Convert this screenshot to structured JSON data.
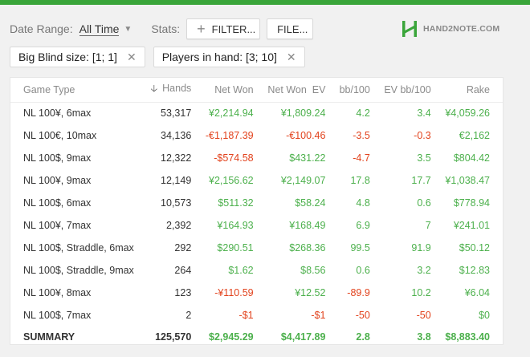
{
  "colors": {
    "accent": "#3aa53a",
    "positive": "#4cb04c",
    "negative": "#e2421c"
  },
  "toolbar": {
    "date_range_label": "Date Range:",
    "date_range_value": "All Time",
    "stats_label": "Stats:",
    "filter_label": "FILTER...",
    "file_label": "FILE..."
  },
  "logo": {
    "text": "HAND2NOTE.COM",
    "icon": "h2n-logo-icon"
  },
  "chips": [
    {
      "label": "Big Blind size: [1; 1]"
    },
    {
      "label": "Players in hand: [3; 10]"
    }
  ],
  "table": {
    "columns": [
      "Game Type",
      "Hands",
      "Net Won",
      "Net Won  EV",
      "bb/100",
      "EV bb/100",
      "Rake"
    ],
    "sort_column": "Hands",
    "rows": [
      {
        "game": "NL 100¥, 6max",
        "hands": "53,317",
        "net": "¥2,214.94",
        "net_s": "pos",
        "netev": "¥1,809.24",
        "netev_s": "pos",
        "bb": "4.2",
        "bb_s": "pos",
        "evbb": "3.4",
        "evbb_s": "pos",
        "rake": "¥4,059.26"
      },
      {
        "game": "NL 100€, 10max",
        "hands": "34,136",
        "net": "-€1,187.39",
        "net_s": "neg",
        "netev": "-€100.46",
        "netev_s": "neg",
        "bb": "-3.5",
        "bb_s": "neg",
        "evbb": "-0.3",
        "evbb_s": "neg",
        "rake": "€2,162"
      },
      {
        "game": "NL 100$, 9max",
        "hands": "12,322",
        "net": "-$574.58",
        "net_s": "neg",
        "netev": "$431.22",
        "netev_s": "pos",
        "bb": "-4.7",
        "bb_s": "neg",
        "evbb": "3.5",
        "evbb_s": "pos",
        "rake": "$804.42"
      },
      {
        "game": "NL 100¥, 9max",
        "hands": "12,149",
        "net": "¥2,156.62",
        "net_s": "pos",
        "netev": "¥2,149.07",
        "netev_s": "pos",
        "bb": "17.8",
        "bb_s": "pos",
        "evbb": "17.7",
        "evbb_s": "pos",
        "rake": "¥1,038.47"
      },
      {
        "game": "NL 100$, 6max",
        "hands": "10,573",
        "net": "$511.32",
        "net_s": "pos",
        "netev": "$58.24",
        "netev_s": "pos",
        "bb": "4.8",
        "bb_s": "pos",
        "evbb": "0.6",
        "evbb_s": "pos",
        "rake": "$778.94"
      },
      {
        "game": "NL 100¥, 7max",
        "hands": "2,392",
        "net": "¥164.93",
        "net_s": "pos",
        "netev": "¥168.49",
        "netev_s": "pos",
        "bb": "6.9",
        "bb_s": "pos",
        "evbb": "7",
        "evbb_s": "pos",
        "rake": "¥241.01"
      },
      {
        "game": "NL 100$, Straddle, 6max",
        "hands": "292",
        "net": "$290.51",
        "net_s": "pos",
        "netev": "$268.36",
        "netev_s": "pos",
        "bb": "99.5",
        "bb_s": "pos",
        "evbb": "91.9",
        "evbb_s": "pos",
        "rake": "$50.12"
      },
      {
        "game": "NL 100$, Straddle, 9max",
        "hands": "264",
        "net": "$1.62",
        "net_s": "pos",
        "netev": "$8.56",
        "netev_s": "pos",
        "bb": "0.6",
        "bb_s": "pos",
        "evbb": "3.2",
        "evbb_s": "pos",
        "rake": "$12.83"
      },
      {
        "game": "NL 100¥, 8max",
        "hands": "123",
        "net": "-¥110.59",
        "net_s": "neg",
        "netev": "¥12.52",
        "netev_s": "pos",
        "bb": "-89.9",
        "bb_s": "neg",
        "evbb": "10.2",
        "evbb_s": "pos",
        "rake": "¥6.04"
      },
      {
        "game": "NL 100$, 7max",
        "hands": "2",
        "net": "-$1",
        "net_s": "neg",
        "netev": "-$1",
        "netev_s": "neg",
        "bb": "-50",
        "bb_s": "neg",
        "evbb": "-50",
        "evbb_s": "neg",
        "rake": "$0"
      }
    ],
    "summary": {
      "game": "SUMMARY",
      "hands": "125,570",
      "net": "$2,945.29",
      "netev": "$4,417.89",
      "bb": "2.8",
      "evbb": "3.8",
      "rake": "$8,883.40"
    }
  }
}
